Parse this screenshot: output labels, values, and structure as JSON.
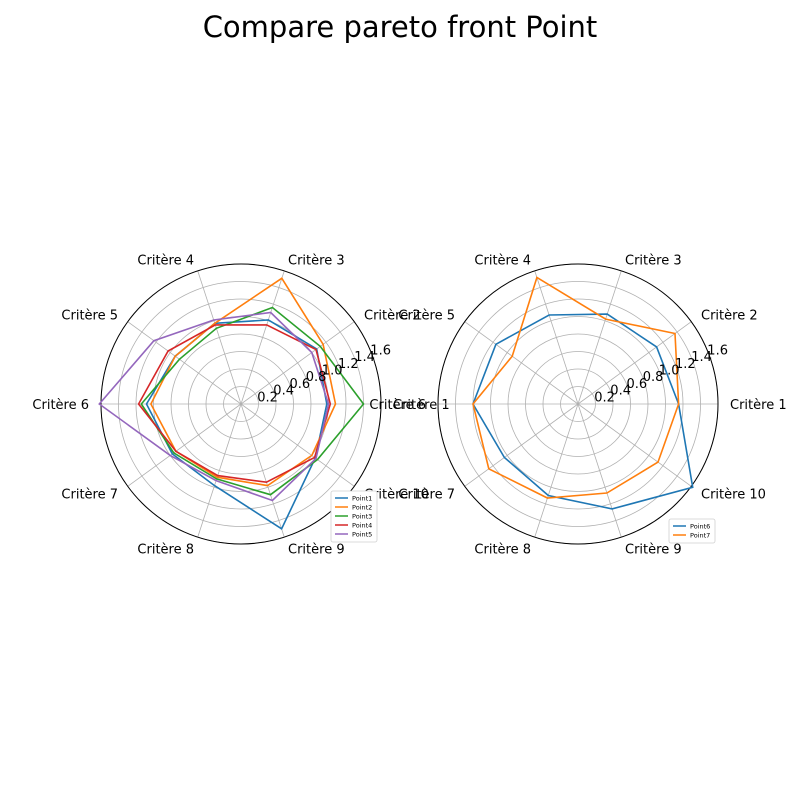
{
  "figure": {
    "title": "Compare pareto front Point"
  },
  "chart_data": [
    {
      "type": "radar",
      "categories": [
        "Critère 1",
        "Critère 2",
        "Critère 3",
        "Critère 4",
        "Critère 5",
        "Critère 6",
        "Critère 7",
        "Critère 8",
        "Critère 9",
        "Critère 10"
      ],
      "rlim": [
        0,
        1.6
      ],
      "rticks": [
        "0.2",
        "0.4",
        "0.6",
        "0.8",
        "1.0",
        "1.2",
        "1.4",
        "1.6"
      ],
      "grid": true,
      "legend_placement": "lower-right",
      "colors": [
        "#1f77b4",
        "#ff7f0e",
        "#2ca02c",
        "#d62728",
        "#9467bd"
      ],
      "series": [
        {
          "name": "Point1",
          "values": [
            0.98,
            1.07,
            1.01,
            0.97,
            0.93,
            1.08,
            0.97,
            0.98,
            1.5,
            1.05
          ]
        },
        {
          "name": "Point2",
          "values": [
            1.08,
            1.16,
            1.51,
            0.97,
            0.93,
            1.03,
            0.92,
            0.88,
            0.98,
            1.0
          ]
        },
        {
          "name": "Point3",
          "values": [
            1.4,
            1.12,
            1.16,
            0.91,
            0.87,
            1.14,
            0.95,
            0.9,
            1.09,
            1.08
          ]
        },
        {
          "name": "Point4",
          "values": [
            1.02,
            1.06,
            0.95,
            0.95,
            1.03,
            1.17,
            0.92,
            0.86,
            0.94,
            1.04
          ]
        },
        {
          "name": "Point5",
          "values": [
            1.0,
            1.0,
            1.1,
            1.01,
            1.23,
            1.62,
            1.0,
            0.92,
            1.16,
            1.06
          ]
        }
      ]
    },
    {
      "type": "radar",
      "categories": [
        "Critère 1",
        "Critère 2",
        "Critère 3",
        "Critère 4",
        "Critère 5",
        "Critère 6",
        "Critère 7",
        "Critère 8",
        "Critère 9",
        "Critère 10"
      ],
      "rlim": [
        0,
        1.6
      ],
      "rticks": [
        "0.2",
        "0.4",
        "0.6",
        "0.8",
        "1.0",
        "1.2",
        "1.4",
        "1.6"
      ],
      "grid": true,
      "legend_placement": "lower-right",
      "colors": [
        "#1f77b4",
        "#ff7f0e"
      ],
      "series": [
        {
          "name": "Point6",
          "values": [
            1.15,
            1.11,
            1.08,
            1.07,
            1.16,
            1.2,
            1.04,
            1.1,
            1.26,
            1.62
          ]
        },
        {
          "name": "Point7",
          "values": [
            1.15,
            1.37,
            1.02,
            1.52,
            0.93,
            1.2,
            1.26,
            1.13,
            1.07,
            1.13
          ]
        }
      ]
    }
  ]
}
